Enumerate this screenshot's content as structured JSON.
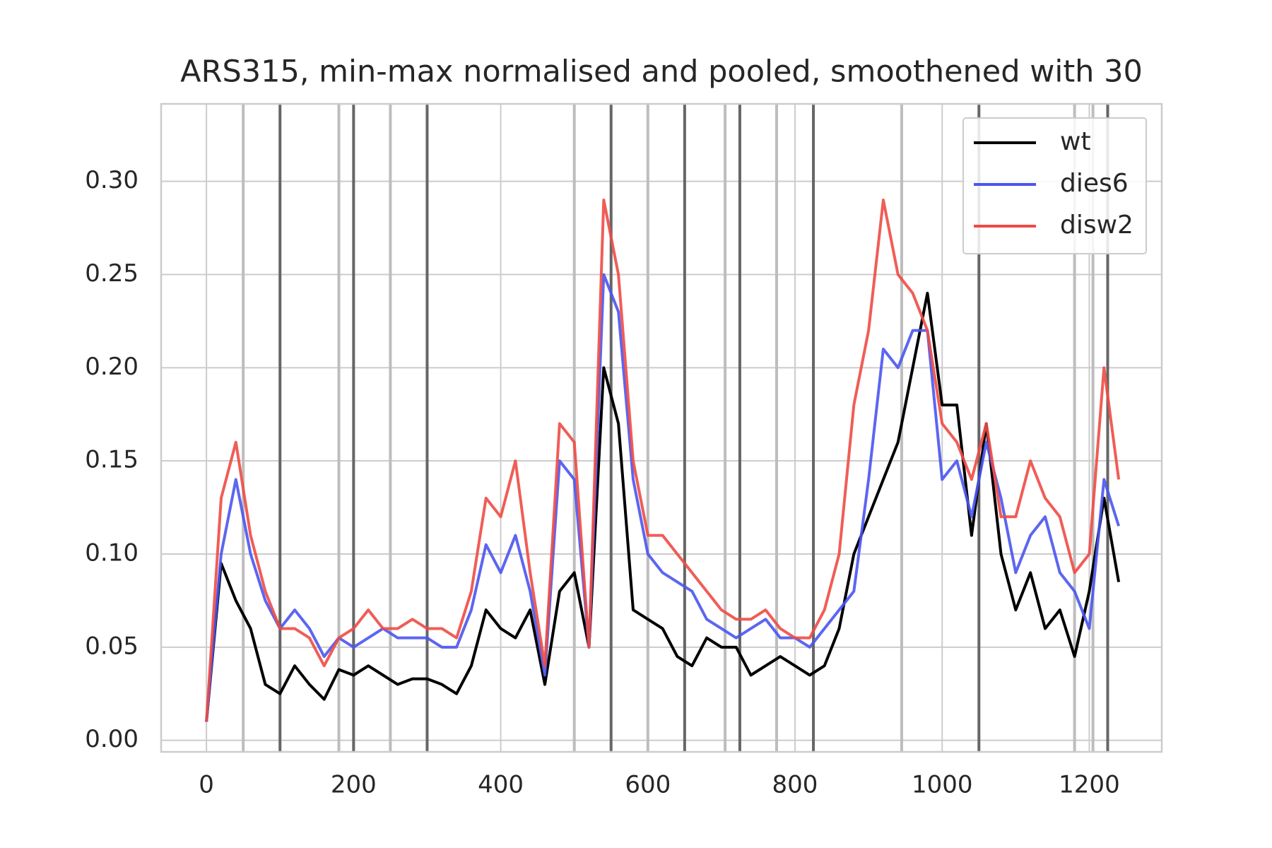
{
  "chart_data": {
    "type": "line",
    "title": "ARS315, min-max normalised and pooled, smoothened with 30",
    "x": [
      0,
      20,
      40,
      60,
      80,
      100,
      120,
      140,
      160,
      180,
      200,
      220,
      240,
      260,
      280,
      300,
      320,
      340,
      360,
      380,
      400,
      420,
      440,
      460,
      480,
      500,
      520,
      540,
      560,
      580,
      600,
      620,
      640,
      660,
      680,
      700,
      720,
      740,
      760,
      780,
      800,
      820,
      840,
      860,
      880,
      900,
      920,
      940,
      960,
      980,
      1000,
      1020,
      1040,
      1060,
      1080,
      1100,
      1120,
      1140,
      1160,
      1180,
      1200,
      1220,
      1240
    ],
    "series": [
      {
        "name": "wt",
        "color": "#000000",
        "values": [
          0.01,
          0.095,
          0.075,
          0.06,
          0.03,
          0.025,
          0.04,
          0.03,
          0.022,
          0.038,
          0.035,
          0.04,
          0.035,
          0.03,
          0.033,
          0.033,
          0.03,
          0.025,
          0.04,
          0.07,
          0.06,
          0.055,
          0.07,
          0.03,
          0.08,
          0.09,
          0.05,
          0.2,
          0.17,
          0.07,
          0.065,
          0.06,
          0.045,
          0.04,
          0.055,
          0.05,
          0.05,
          0.035,
          0.04,
          0.045,
          0.04,
          0.035,
          0.04,
          0.06,
          0.1,
          0.12,
          0.14,
          0.16,
          0.2,
          0.24,
          0.18,
          0.18,
          0.11,
          0.17,
          0.1,
          0.07,
          0.09,
          0.06,
          0.07,
          0.045,
          0.08,
          0.13,
          0.085
        ]
      },
      {
        "name": "dies6",
        "color": "#4a55ee",
        "values": [
          0.01,
          0.1,
          0.14,
          0.1,
          0.075,
          0.06,
          0.07,
          0.06,
          0.045,
          0.055,
          0.05,
          0.055,
          0.06,
          0.055,
          0.055,
          0.055,
          0.05,
          0.05,
          0.07,
          0.105,
          0.09,
          0.11,
          0.08,
          0.035,
          0.15,
          0.14,
          0.05,
          0.25,
          0.23,
          0.14,
          0.1,
          0.09,
          0.085,
          0.08,
          0.065,
          0.06,
          0.055,
          0.06,
          0.065,
          0.055,
          0.055,
          0.05,
          0.06,
          0.07,
          0.08,
          0.14,
          0.21,
          0.2,
          0.22,
          0.22,
          0.14,
          0.15,
          0.12,
          0.16,
          0.13,
          0.09,
          0.11,
          0.12,
          0.09,
          0.08,
          0.06,
          0.14,
          0.115
        ]
      },
      {
        "name": "disw2",
        "color": "#ee4b45",
        "values": [
          0.01,
          0.13,
          0.16,
          0.11,
          0.08,
          0.06,
          0.06,
          0.055,
          0.04,
          0.055,
          0.06,
          0.07,
          0.06,
          0.06,
          0.065,
          0.06,
          0.06,
          0.055,
          0.08,
          0.13,
          0.12,
          0.15,
          0.09,
          0.04,
          0.17,
          0.16,
          0.05,
          0.29,
          0.25,
          0.15,
          0.11,
          0.11,
          0.1,
          0.09,
          0.08,
          0.07,
          0.065,
          0.065,
          0.07,
          0.06,
          0.055,
          0.055,
          0.07,
          0.1,
          0.18,
          0.22,
          0.29,
          0.25,
          0.24,
          0.22,
          0.17,
          0.16,
          0.14,
          0.17,
          0.12,
          0.12,
          0.15,
          0.13,
          0.12,
          0.09,
          0.1,
          0.2,
          0.14
        ]
      }
    ],
    "reference_lines": [
      {
        "x": 50,
        "color": "#bdbdbd"
      },
      {
        "x": 180,
        "color": "#bdbdbd"
      },
      {
        "x": 250,
        "color": "#bdbdbd"
      },
      {
        "x": 500,
        "color": "#bdbdbd"
      },
      {
        "x": 600,
        "color": "#bdbdbd"
      },
      {
        "x": 705,
        "color": "#bdbdbd"
      },
      {
        "x": 775,
        "color": "#bdbdbd"
      },
      {
        "x": 945,
        "color": "#bdbdbd"
      },
      {
        "x": 1180,
        "color": "#bdbdbd"
      },
      {
        "x": 1205,
        "color": "#bdbdbd"
      },
      {
        "x": 100,
        "color": "#666666"
      },
      {
        "x": 200,
        "color": "#666666"
      },
      {
        "x": 300,
        "color": "#666666"
      },
      {
        "x": 550,
        "color": "#666666"
      },
      {
        "x": 650,
        "color": "#666666"
      },
      {
        "x": 725,
        "color": "#666666"
      },
      {
        "x": 825,
        "color": "#666666"
      },
      {
        "x": 1050,
        "color": "#666666"
      },
      {
        "x": 1225,
        "color": "#666666"
      }
    ],
    "xlim": [
      -61.6,
      1298.5
    ],
    "ylim": [
      -0.0062,
      0.3416
    ],
    "xticks": [
      0,
      200,
      400,
      600,
      800,
      1000,
      1200
    ],
    "yticks": [
      {
        "value": 0,
        "label": "0.00"
      },
      {
        "value": 0.05,
        "label": "0.05"
      },
      {
        "value": 0.1,
        "label": "0.10"
      },
      {
        "value": 0.15,
        "label": "0.15"
      },
      {
        "value": 0.2,
        "label": "0.20"
      },
      {
        "value": 0.25,
        "label": "0.25"
      },
      {
        "value": 0.3,
        "label": "0.30"
      }
    ],
    "grid": true,
    "legend": "upper right"
  }
}
